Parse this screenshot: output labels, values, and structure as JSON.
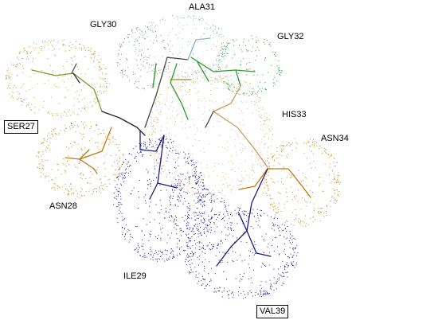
{
  "residues": [
    {
      "id": "gly30",
      "label": "GLY30",
      "boxed": false,
      "color": "#8a8a8a"
    },
    {
      "id": "ala31",
      "label": "ALA31",
      "boxed": false,
      "color": "#9fb8c6"
    },
    {
      "id": "gly32",
      "label": "GLY32",
      "boxed": false,
      "color": "#2fa52f"
    },
    {
      "id": "ser27",
      "label": "SER27",
      "boxed": true,
      "color": "#c8a050"
    },
    {
      "id": "his33",
      "label": "HIS33",
      "boxed": false,
      "color": "#d8b890"
    },
    {
      "id": "asn34",
      "label": "ASN34",
      "boxed": false,
      "color": "#d28a20"
    },
    {
      "id": "asn28",
      "label": "ASN28",
      "boxed": false,
      "color": "#d28a20"
    },
    {
      "id": "ile29",
      "label": "ILE29",
      "boxed": false,
      "color": "#1f1f9a"
    },
    {
      "id": "val39",
      "label": "VAL39",
      "boxed": true,
      "color": "#1f1f9a"
    }
  ]
}
